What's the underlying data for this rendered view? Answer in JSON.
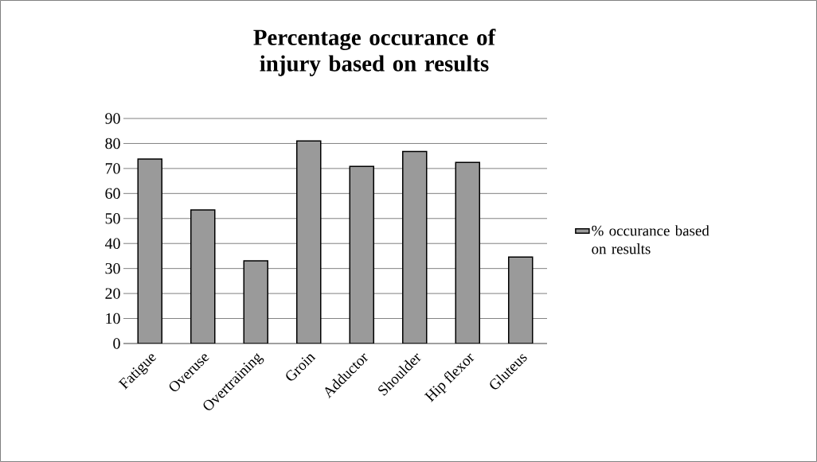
{
  "chart_data": {
    "type": "bar",
    "title": "Percentage occurance of injury based on results",
    "categories": [
      "Fatigue",
      "Overuse",
      "Overtraining",
      "Groin",
      "Adductor",
      "Shoulder",
      "Hip flexor",
      "Gluteus"
    ],
    "series": [
      {
        "name": "% occurance based on results",
        "color": "#9a9a9a",
        "values": [
          73.8,
          53.4,
          33.1,
          81,
          70.8,
          76.8,
          72.4,
          34.6
        ]
      }
    ],
    "ylim": [
      0,
      90
    ],
    "yticks": [
      0,
      10,
      20,
      30,
      40,
      50,
      60,
      70,
      80,
      90
    ],
    "grid": "y",
    "legend": "right"
  }
}
